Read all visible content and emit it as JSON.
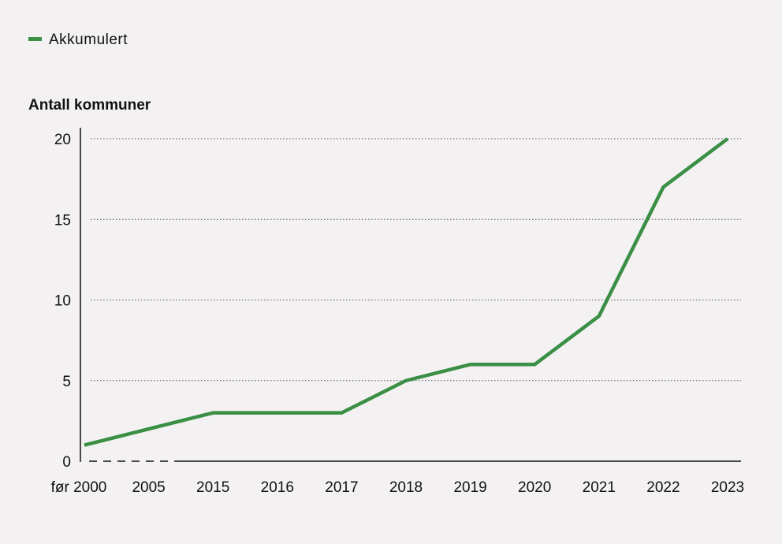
{
  "chart_data": {
    "type": "line",
    "legend": {
      "position": "top-left",
      "entries": [
        "Akkumulert"
      ]
    },
    "ylabel": "Antall kommuner",
    "xlabel": "",
    "categories": [
      "før 2000",
      "2005",
      "2015",
      "2016",
      "2017",
      "2018",
      "2019",
      "2020",
      "2021",
      "2022",
      "2023"
    ],
    "series": [
      {
        "name": "Akkumulert",
        "color": "#3a8f44",
        "values": [
          1,
          2,
          3,
          3,
          3,
          5,
          6,
          6,
          9,
          17,
          20
        ]
      }
    ],
    "ylim": [
      0,
      20
    ],
    "yticks": [
      0,
      5,
      10,
      15,
      20
    ],
    "grid": "horizontal dotted",
    "axis_break": "dashed baseline between før 2000 and 2015"
  }
}
